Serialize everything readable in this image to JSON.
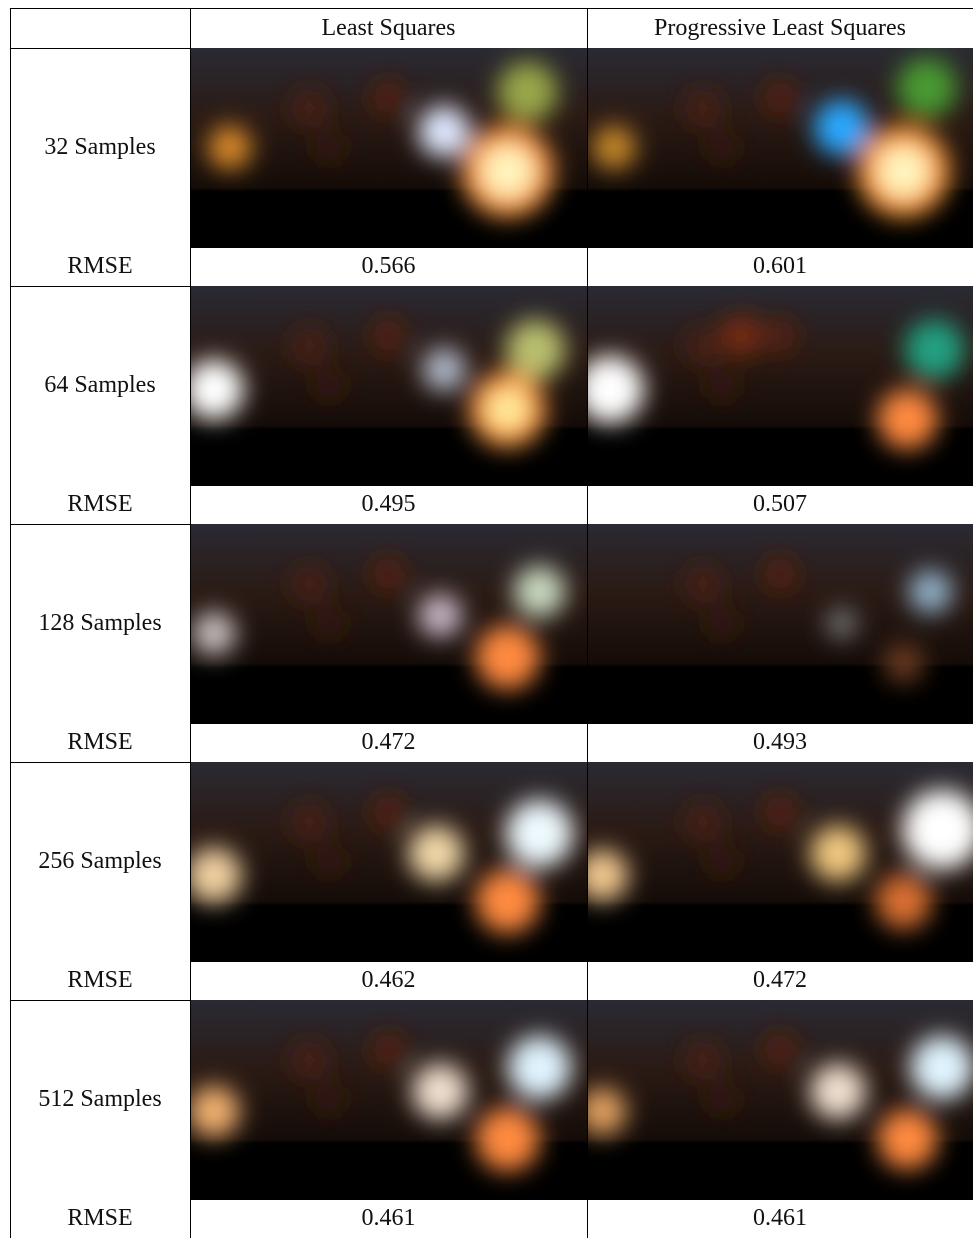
{
  "table": {
    "header": [
      "Least Squares",
      "Progressive Least Squares"
    ],
    "rows": [
      {
        "label": "32 Samples",
        "metric": "RMSE",
        "values": [
          "0.566",
          "0.601"
        ]
      },
      {
        "label": "64 Samples",
        "metric": "RMSE",
        "values": [
          "0.495",
          "0.507"
        ]
      },
      {
        "label": "128 Samples",
        "metric": "RMSE",
        "values": [
          "0.472",
          "0.493"
        ]
      },
      {
        "label": "256 Samples",
        "metric": "RMSE",
        "values": [
          "0.462",
          "0.472"
        ]
      },
      {
        "label": "512 Samples",
        "metric": "RMSE",
        "values": [
          "0.461",
          "0.461"
        ]
      }
    ]
  }
}
